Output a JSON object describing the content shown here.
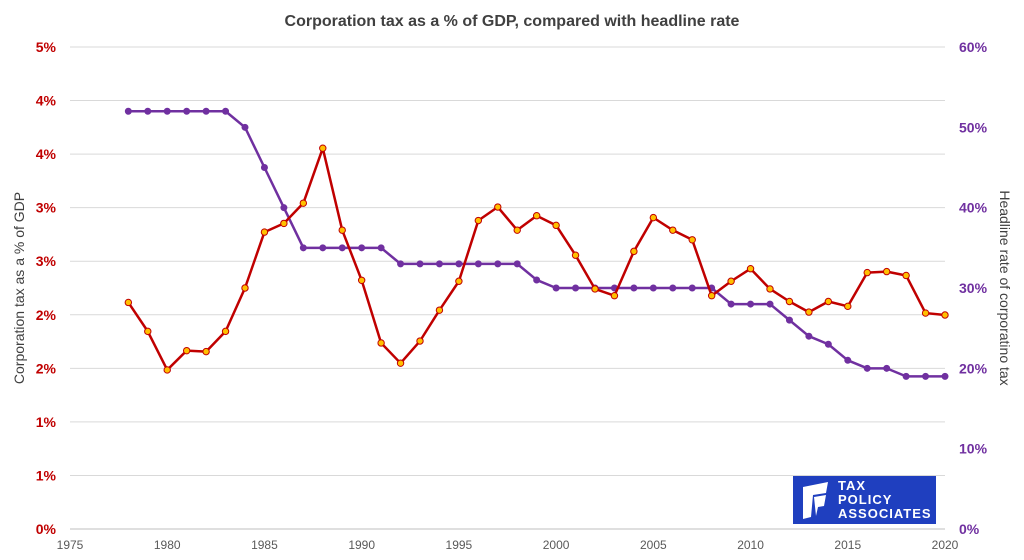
{
  "chart_data": {
    "type": "line",
    "title": "Corporation tax as a % of GDP, compared with headline rate",
    "ylabel_left": "Corporation tax as a % of GDP",
    "ylabel_right": "Headline rate of corporatino tax",
    "x_range": [
      1975,
      2020
    ],
    "x_ticks": [
      "1975",
      "1980",
      "1985",
      "1990",
      "1995",
      "2000",
      "2005",
      "2010",
      "2015",
      "2020"
    ],
    "y_left_range": [
      0,
      5
    ],
    "y_left_ticks": [
      "0%",
      "1%",
      "1%",
      "2%",
      "2%",
      "3%",
      "3%",
      "4%",
      "4%",
      "5%"
    ],
    "y_right_range": [
      0,
      60
    ],
    "y_right_ticks": [
      "0%",
      "10%",
      "20%",
      "30%",
      "40%",
      "50%",
      "60%"
    ],
    "grid": true,
    "colors": {
      "left_series": "#c00000",
      "left_marker": "#ffc000",
      "right_series": "#7030a0",
      "right_axis": "#7030a0",
      "left_axis": "#c00000"
    },
    "series": [
      {
        "axis": "left",
        "years": [
          1978,
          1979,
          1980,
          1981,
          1982,
          1983,
          1984,
          1985,
          1986,
          1987,
          1988,
          1989,
          1990,
          1991,
          1992,
          1993,
          1994,
          1995,
          1996,
          1997,
          1998,
          1999,
          2000,
          2001,
          2002,
          2003,
          2004,
          2005,
          2006,
          2007,
          2008,
          2009,
          2010,
          2011,
          2012,
          2013,
          2014,
          2015,
          2016,
          2017,
          2018,
          2019,
          2020
        ],
        "values": [
          2.35,
          2.05,
          1.65,
          1.85,
          1.84,
          2.05,
          2.5,
          3.08,
          3.17,
          3.38,
          3.95,
          3.1,
          2.58,
          1.93,
          1.72,
          1.95,
          2.27,
          2.57,
          3.2,
          3.34,
          3.1,
          3.25,
          3.15,
          2.84,
          2.49,
          2.42,
          2.88,
          3.23,
          3.1,
          3.0,
          2.42,
          2.57,
          2.7,
          2.49,
          2.36,
          2.25,
          2.36,
          2.31,
          2.66,
          2.67,
          2.63,
          2.24,
          2.22
        ]
      },
      {
        "axis": "right",
        "years": [
          1978,
          1979,
          1980,
          1981,
          1982,
          1983,
          1984,
          1985,
          1986,
          1987,
          1988,
          1989,
          1990,
          1991,
          1992,
          1993,
          1994,
          1995,
          1996,
          1997,
          1998,
          1999,
          2000,
          2001,
          2002,
          2003,
          2004,
          2005,
          2006,
          2007,
          2008,
          2009,
          2010,
          2011,
          2012,
          2013,
          2014,
          2015,
          2016,
          2017,
          2018,
          2019,
          2020
        ],
        "values": [
          52,
          52,
          52,
          52,
          52,
          52,
          50,
          45,
          40,
          35,
          35,
          35,
          35,
          35,
          33,
          33,
          33,
          33,
          33,
          33,
          33,
          31,
          30,
          30,
          30,
          30,
          30,
          30,
          30,
          30,
          30,
          28,
          28,
          28,
          26,
          24,
          23,
          21,
          20,
          20,
          19,
          19,
          19
        ]
      }
    ]
  },
  "logo": {
    "line1": "TAX",
    "line2": "POLICY",
    "line3": "ASSOCIATES"
  }
}
